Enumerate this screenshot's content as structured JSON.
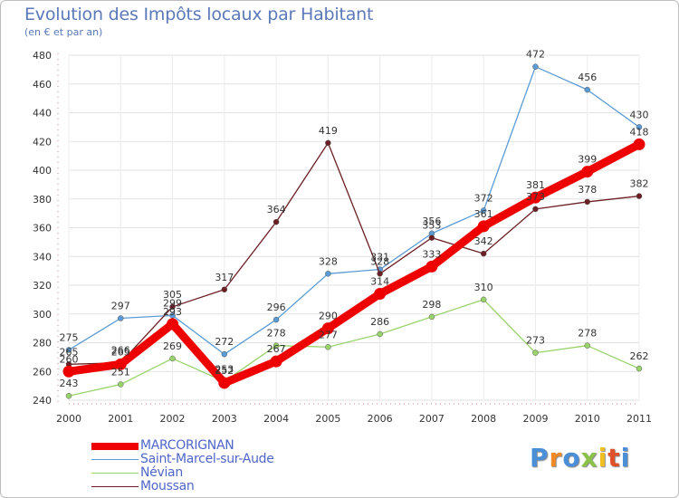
{
  "chart_data": {
    "type": "line",
    "title": "Evolution des Impôts locaux par Habitant",
    "subtitle": "(en € et par an)",
    "x": [
      "2000",
      "2001",
      "2002",
      "2003",
      "2004",
      "2005",
      "2006",
      "2007",
      "2008",
      "2009",
      "2010",
      "2011"
    ],
    "ylim": [
      240,
      480
    ],
    "yticks": [
      240,
      260,
      280,
      300,
      320,
      340,
      360,
      380,
      400,
      420,
      440,
      460,
      480
    ],
    "grid": true,
    "legend_position": "bottom-left",
    "series": [
      {
        "name": "Saint-Marcel-sur-Aude",
        "color": "#5b9bd5",
        "values": [
          275,
          297,
          299,
          272,
          296,
          328,
          331,
          356,
          372,
          472,
          456,
          430
        ]
      },
      {
        "name": "Névian",
        "color": "#99d36b",
        "values": [
          243,
          251,
          269,
          253,
          278,
          277,
          286,
          298,
          310,
          273,
          278,
          262
        ]
      },
      {
        "name": "Moussan",
        "color": "#6b1f24",
        "values": [
          265,
          266,
          305,
          317,
          364,
          419,
          328,
          353,
          342,
          373,
          378,
          382
        ]
      },
      {
        "name": "MARCORIGNAN",
        "color": "#ee0000",
        "values": [
          260,
          265,
          293,
          252,
          267,
          290,
          314,
          333,
          361,
          381,
          399,
          418
        ]
      }
    ],
    "labels": [
      [
        275,
        297,
        299,
        272,
        296,
        328,
        331,
        356,
        372,
        472,
        456,
        430
      ],
      [
        243,
        251,
        269,
        253,
        278,
        277,
        286,
        298,
        310,
        273,
        278,
        262
      ],
      [
        265,
        266,
        305,
        317,
        364,
        419,
        328,
        353,
        342,
        373,
        378,
        382
      ],
      [
        260,
        265,
        293,
        252,
        267,
        290,
        314,
        333,
        361,
        381,
        399,
        418
      ]
    ]
  },
  "legend": [
    {
      "name": "MARCORIGNAN",
      "color": "#ee0000"
    },
    {
      "name": "Saint-Marcel-sur-Aude",
      "color": "#5b9bd5"
    },
    {
      "name": "Névian",
      "color": "#99d36b"
    },
    {
      "name": "Moussan",
      "color": "#6b1f24"
    }
  ],
  "brand": {
    "text": "Proxiti"
  }
}
